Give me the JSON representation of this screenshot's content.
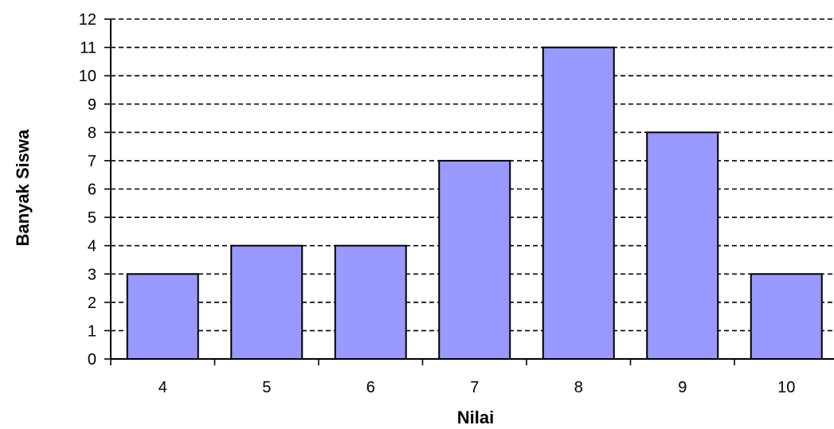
{
  "colors": {
    "bar_fill": "#9999ff",
    "bar_stroke": "#000000",
    "grid": "#000000",
    "axis": "#000000",
    "background": "#ffffff"
  },
  "chart_data": {
    "type": "bar",
    "title": "",
    "xlabel": "Nilai",
    "ylabel": "Banyak Siswa",
    "categories": [
      "4",
      "5",
      "6",
      "7",
      "8",
      "9",
      "10"
    ],
    "values": [
      3,
      4,
      4,
      7,
      11,
      8,
      3
    ],
    "ylim": [
      0,
      12
    ],
    "yticks": [
      "0",
      "1",
      "2",
      "3",
      "4",
      "5",
      "6",
      "7",
      "8",
      "9",
      "10",
      "11",
      "12"
    ],
    "grid": "horizontal dashed",
    "legend": "none"
  }
}
